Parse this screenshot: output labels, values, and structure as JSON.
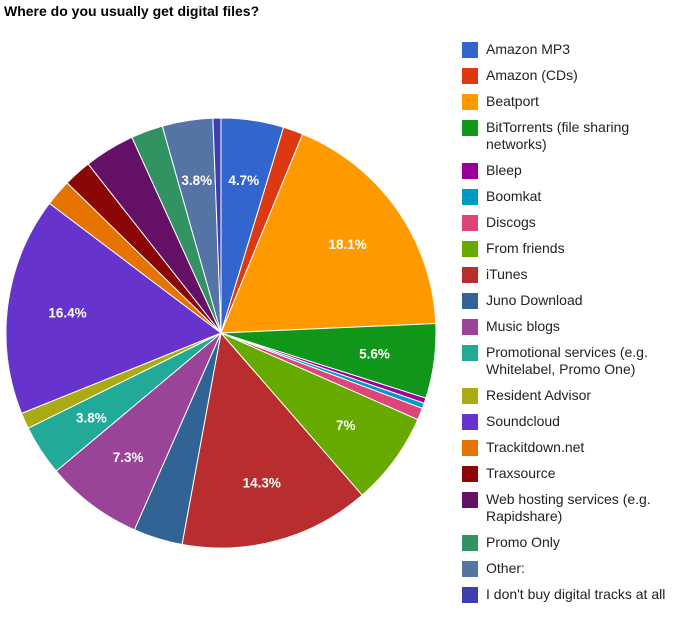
{
  "chart_data": {
    "type": "pie",
    "title": "Where do you usually get digital files?",
    "legend_position": "right",
    "start_angle_deg": 0,
    "direction": "clockwise",
    "series": [
      {
        "name": "Amazon MP3",
        "value": 4.7,
        "color": "#3366cc",
        "label": "4.7%"
      },
      {
        "name": "Amazon (CDs)",
        "value": 1.5,
        "color": "#dc3912",
        "label": ""
      },
      {
        "name": "Beatport",
        "value": 18.1,
        "color": "#ff9900",
        "label": "18.1%"
      },
      {
        "name": "BitTorrents (file sharing networks)",
        "value": 5.6,
        "color": "#109618",
        "label": "5.6%"
      },
      {
        "name": "Bleep",
        "value": 0.4,
        "color": "#990099",
        "label": ""
      },
      {
        "name": "Boomkat",
        "value": 0.4,
        "color": "#0099c6",
        "label": ""
      },
      {
        "name": "Discogs",
        "value": 0.9,
        "color": "#dd4477",
        "label": ""
      },
      {
        "name": "From friends",
        "value": 7.0,
        "color": "#66aa00",
        "label": "7%"
      },
      {
        "name": "iTunes",
        "value": 14.3,
        "color": "#b82e2e",
        "label": "14.3%"
      },
      {
        "name": "Juno Download",
        "value": 3.7,
        "color": "#316395",
        "label": ""
      },
      {
        "name": "Music blogs",
        "value": 7.3,
        "color": "#994499",
        "label": "7.3%"
      },
      {
        "name": "Promotional services (e.g. Whitelabel, Promo One)",
        "value": 3.8,
        "color": "#22aa99",
        "label": "3.8%"
      },
      {
        "name": "Resident Advisor",
        "value": 1.2,
        "color": "#aaaa11",
        "label": ""
      },
      {
        "name": "Soundcloud",
        "value": 16.4,
        "color": "#6633cc",
        "label": "16.4%"
      },
      {
        "name": "Trackitdown.net",
        "value": 2.0,
        "color": "#e67300",
        "label": ""
      },
      {
        "name": "Traxsource",
        "value": 2.1,
        "color": "#8b0707",
        "label": ""
      },
      {
        "name": "Web hosting services (e.g. Rapidshare)",
        "value": 3.8,
        "color": "#651067",
        "label": ""
      },
      {
        "name": "Promo Only",
        "value": 2.4,
        "color": "#329262",
        "label": ""
      },
      {
        "name": "Other:",
        "value": 3.8,
        "color": "#5574a6",
        "label": "3.8%"
      },
      {
        "name": "I don't buy digital tracks at all",
        "value": 0.6,
        "color": "#3b3eac",
        "label": ""
      }
    ]
  },
  "legend": [
    {
      "label": "Amazon MP3"
    },
    {
      "label": "Amazon (CDs)"
    },
    {
      "label": "Beatport"
    },
    {
      "label": "BitTorrents (file sharing networks)"
    },
    {
      "label": "Bleep"
    },
    {
      "label": "Boomkat"
    },
    {
      "label": "Discogs"
    },
    {
      "label": "From friends"
    },
    {
      "label": "iTunes"
    },
    {
      "label": "Juno Download"
    },
    {
      "label": "Music blogs"
    },
    {
      "label": "Promotional services (e.g. Whitelabel, Promo One)"
    },
    {
      "label": "Resident Advisor"
    },
    {
      "label": "Soundcloud"
    },
    {
      "label": "Trackitdown.net"
    },
    {
      "label": "Traxsource"
    },
    {
      "label": "Web hosting services (e.g. Rapidshare)"
    },
    {
      "label": "Promo Only"
    },
    {
      "label": "Other:"
    },
    {
      "label": "I don't buy digital tracks at all"
    }
  ]
}
